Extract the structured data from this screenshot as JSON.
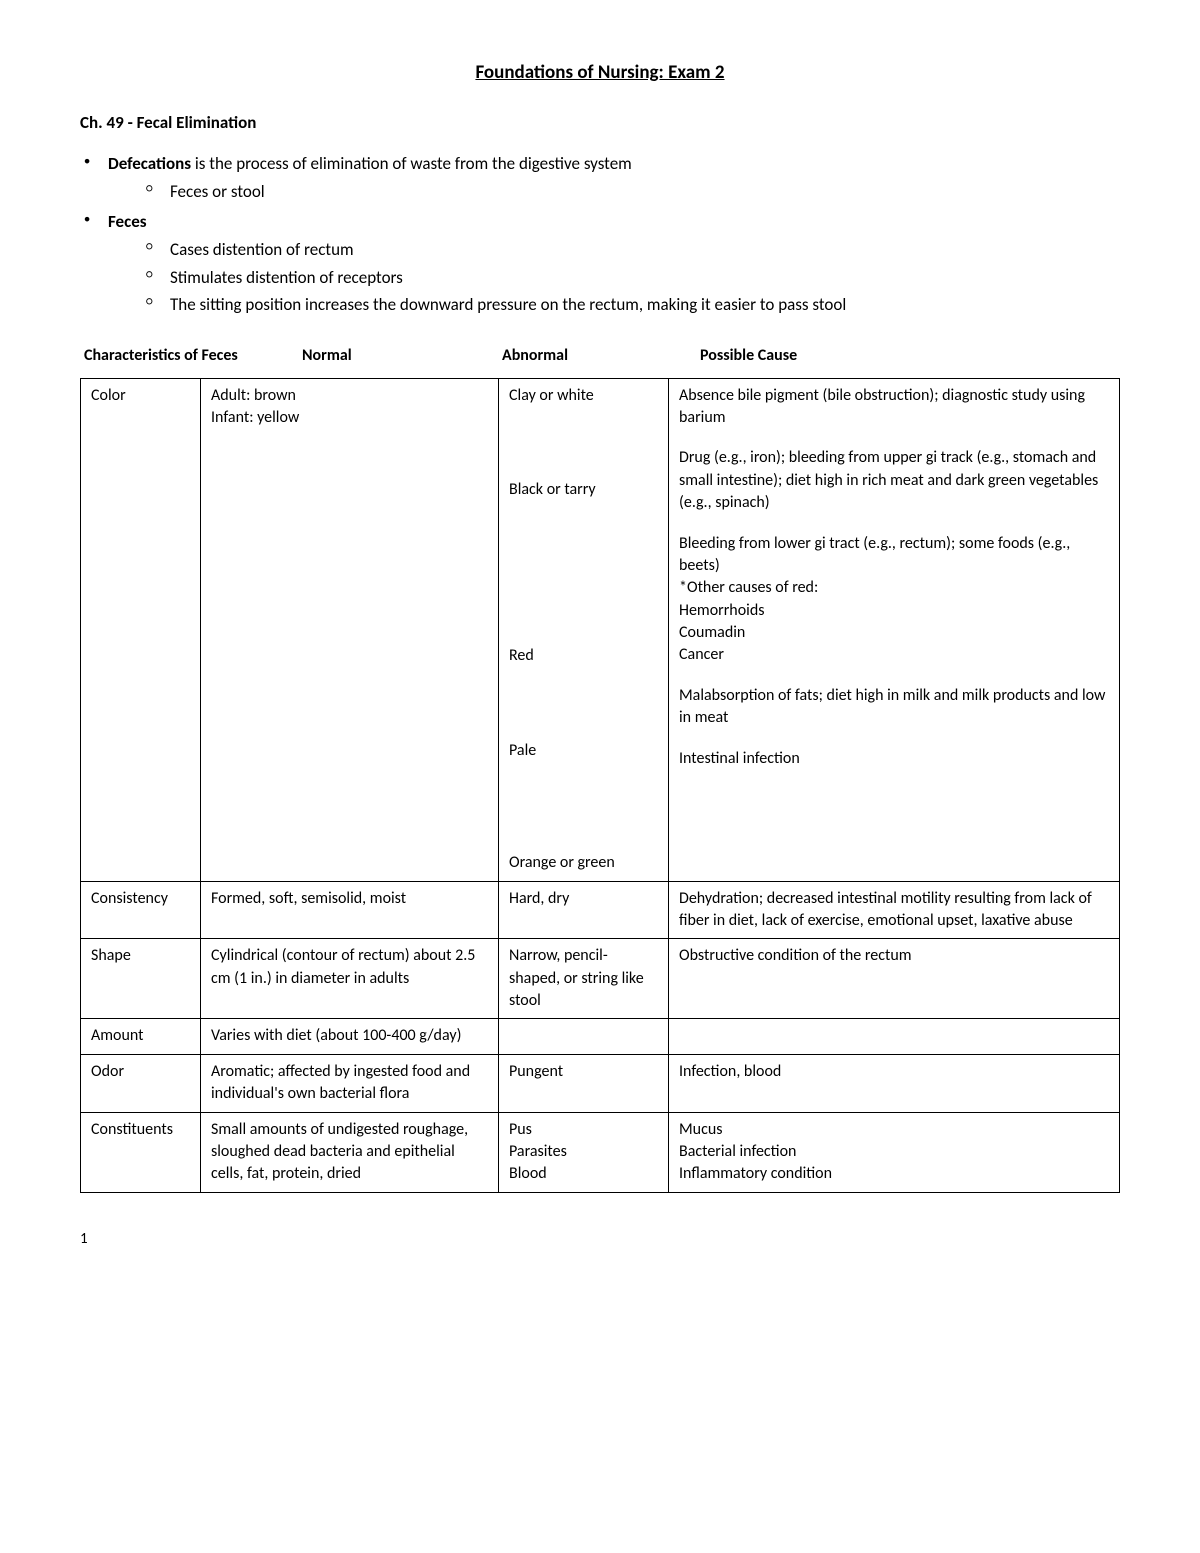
{
  "title": "Foundations of Nursing: Exam 2",
  "chapter": "Ch. 49 - Fecal Elimination",
  "bullets": {
    "b1_bold": "Defecations",
    "b1_rest": " is the process of elimination of waste from the digestive system",
    "b1_sub1": "Feces or stool",
    "b2": "Feces",
    "b2_sub1": "Cases distention of rectum",
    "b2_sub2": "Stimulates distention of receptors",
    "b2_sub3": "The sitting position increases the downward pressure on the rectum, making it easier to pass stool"
  },
  "headers": {
    "h1": "Characteristics of Feces",
    "h2": "Normal",
    "h3": "Abnormal",
    "h4": "Possible Cause"
  },
  "rows": {
    "color": {
      "label": "Color",
      "normal_l1": "Adult: brown",
      "normal_l2": "Infant: yellow",
      "ab1": "Clay or white",
      "cause1": "Absence bile pigment (bile obstruction); diagnostic study using barium",
      "ab2": "Black or tarry",
      "cause2": "Drug (e.g., iron); bleeding from upper gi track (e.g., stomach and small intestine); diet high in rich meat and dark green vegetables (e.g., spinach)",
      "ab3": "Red",
      "cause3a": "Bleeding from lower gi tract (e.g., rectum); some foods (e.g., beets)",
      "cause3b": "*Other causes of red:",
      "cause3c": "Hemorrhoids",
      "cause3d": "Coumadin",
      "cause3e": "Cancer",
      "ab4": "Pale",
      "cause4": "Malabsorption of fats; diet high in milk and milk products and low in meat",
      "ab5": "Orange or green",
      "cause5": "Intestinal infection"
    },
    "consistency": {
      "label": "Consistency",
      "normal": "Formed, soft, semisolid, moist",
      "abnormal": "Hard, dry",
      "cause": "Dehydration; decreased intestinal motility resulting from lack of fiber in diet, lack of exercise, emotional upset, laxative abuse"
    },
    "shape": {
      "label": "Shape",
      "normal": "Cylindrical (contour of rectum) about 2.5 cm (1 in.) in diameter in adults",
      "abnormal": "Narrow, pencil-shaped, or string like stool",
      "cause": "Obstructive condition of the rectum"
    },
    "amount": {
      "label": "Amount",
      "normal": "Varies with diet (about 100-400 g/day)",
      "abnormal": "",
      "cause": ""
    },
    "odor": {
      "label": "Odor",
      "normal": "Aromatic; affected by ingested food and individual's own bacterial flora",
      "abnormal": "Pungent",
      "cause": "Infection, blood"
    },
    "constituents": {
      "label": "Constituents",
      "normal": "Small amounts of undigested roughage, sloughed dead bacteria and epithelial cells, fat, protein, dried",
      "ab_l1": "Pus",
      "ab_l2": "Parasites",
      "ab_l3": "Blood",
      "cause_l1": "Mucus",
      "cause_l2": "Bacterial infection",
      "cause_l3": "Inflammatory condition"
    }
  },
  "page_number": "1"
}
